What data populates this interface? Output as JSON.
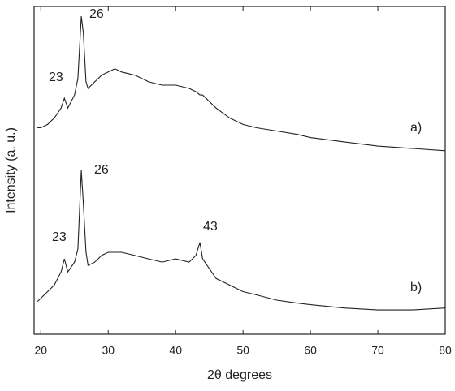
{
  "chart_data": {
    "type": "line",
    "xlabel": "2θ degrees",
    "ylabel": "Intensity (a. u.)",
    "x": [
      19.5,
      20,
      21,
      22,
      23,
      23.5,
      24,
      25,
      25.5,
      26,
      26.3,
      26.7,
      27,
      28,
      29,
      30,
      31,
      32,
      34,
      36,
      38,
      40,
      42,
      43,
      43.6,
      44,
      45,
      46,
      48,
      50,
      52,
      55,
      58,
      60,
      65,
      70,
      75,
      80
    ],
    "series": [
      {
        "name": "a)",
        "color": "#222222",
        "values": [
          63,
          63,
          64,
          66,
          69,
          72,
          69,
          73,
          78,
          97,
          92,
          77,
          75,
          77,
          79,
          80,
          81,
          80,
          79,
          77,
          76,
          76,
          75,
          74,
          73,
          73,
          71,
          69,
          66,
          64,
          63,
          62,
          61,
          60,
          58.7,
          57.4,
          56.7,
          56
        ]
      },
      {
        "name": "b)",
        "color": "#222222",
        "values": [
          10,
          11,
          13,
          15,
          19,
          23,
          19,
          22,
          26,
          50,
          40,
          25,
          21,
          22,
          24,
          25,
          25,
          25,
          24,
          23,
          22,
          23,
          22,
          24,
          28,
          23,
          20,
          17,
          15,
          13,
          12,
          10.4,
          9.5,
          9,
          8,
          7.4,
          7.4,
          8
        ]
      }
    ],
    "annotations": [
      "26",
      "23",
      "26",
      "23",
      "43"
    ],
    "xlim": [
      19,
      80
    ],
    "xticks": [
      20,
      30,
      40,
      50,
      60,
      70,
      80
    ],
    "ylim": [
      0,
      100
    ]
  }
}
